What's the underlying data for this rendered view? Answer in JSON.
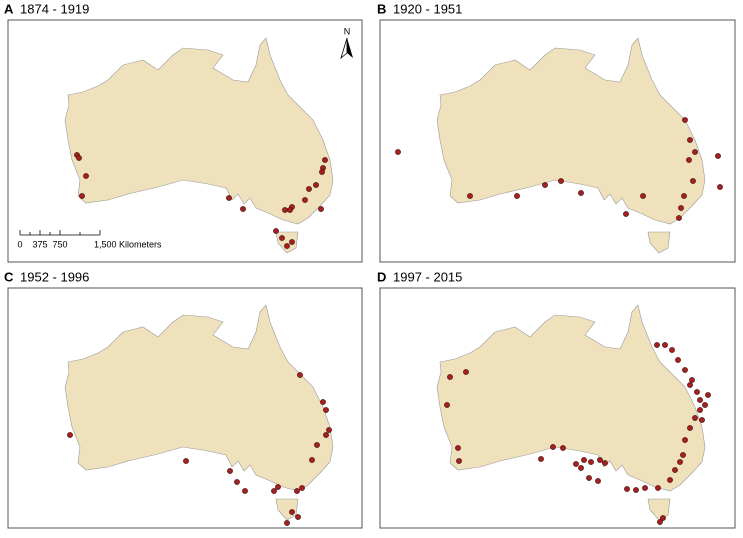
{
  "panels": [
    {
      "letter": "A",
      "title": "1874 - 1919"
    },
    {
      "letter": "B",
      "title": "1920 - 1951"
    },
    {
      "letter": "C",
      "title": "1952 - 1996"
    },
    {
      "letter": "D",
      "title": "1997 - 2015"
    }
  ],
  "north_arrow": "N",
  "scale_bar": {
    "labels": [
      "0",
      "375",
      "750",
      "1,500 Kilometers"
    ]
  }
}
